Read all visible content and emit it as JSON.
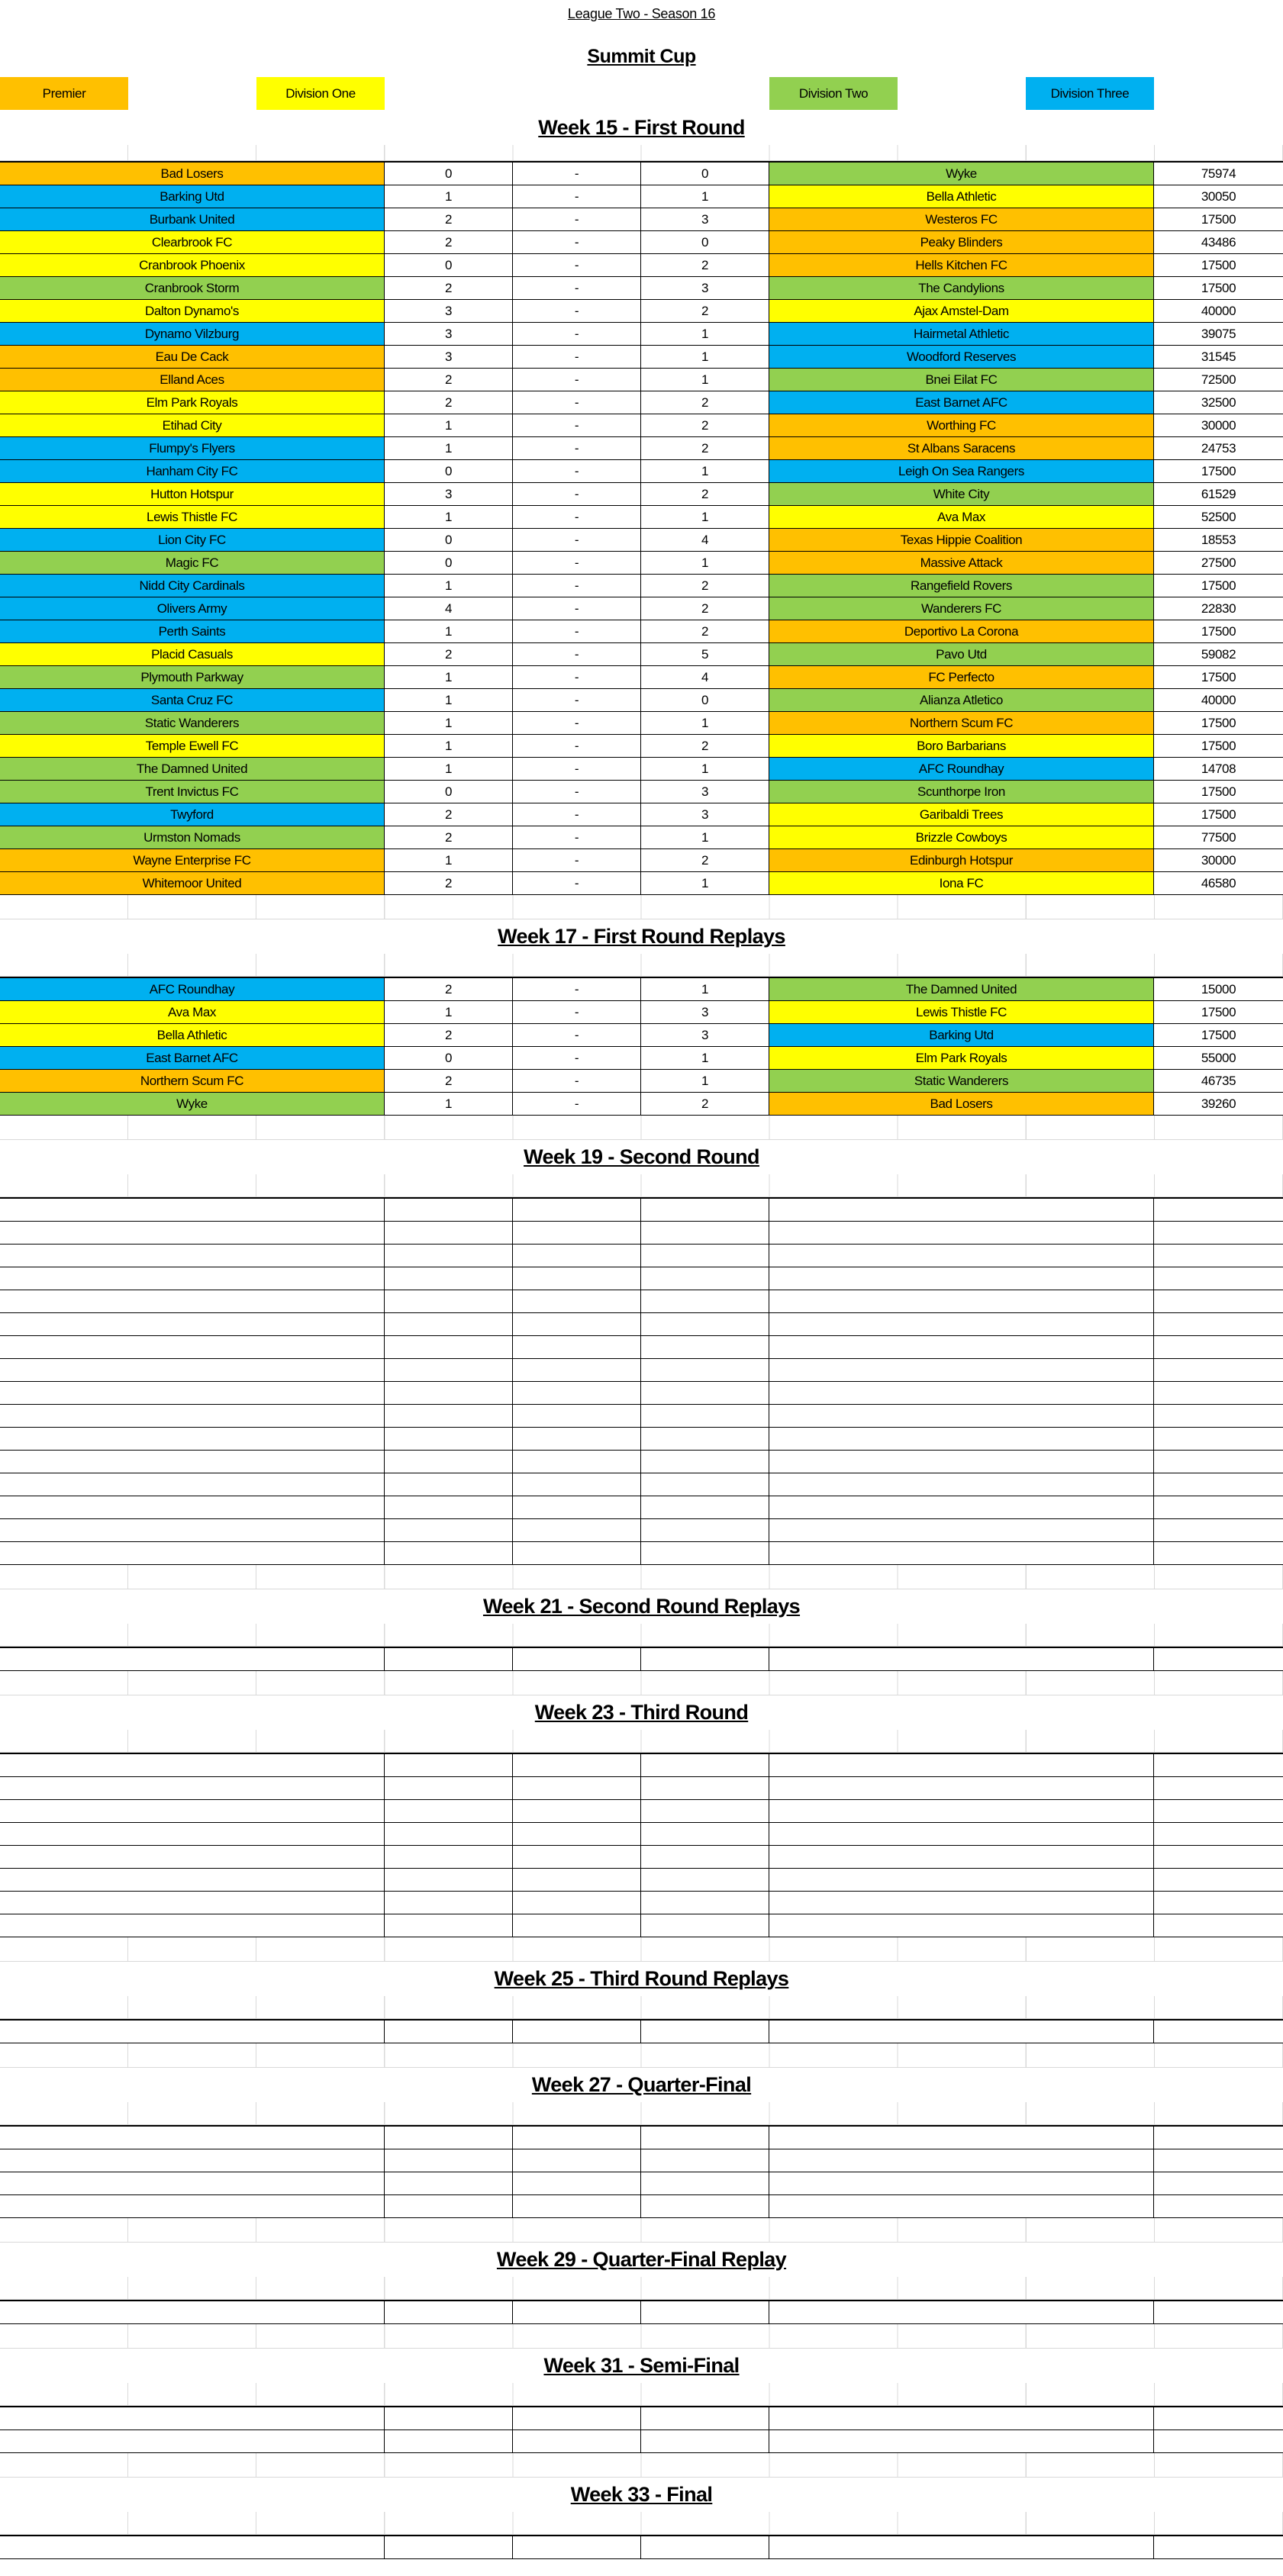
{
  "sheet_title": "League Two - Season 16",
  "competition": "Summit Cup",
  "score_separator": "-",
  "divisions": [
    {
      "name": "Premier",
      "color": "#FFC000"
    },
    {
      "name": "Division One",
      "color": "#FFFF00"
    },
    {
      "name": "Division Two",
      "color": "#92D050"
    },
    {
      "name": "Division Three",
      "color": "#00B0F0"
    }
  ],
  "rounds": [
    {
      "heading": "Week 15 - First Round",
      "fixtures": [
        [
          "Bad Losers",
          "Premier",
          0,
          0,
          "Wyke",
          "Division Two",
          75974
        ],
        [
          "Barking Utd",
          "Division Three",
          1,
          1,
          "Bella Athletic",
          "Division One",
          30050
        ],
        [
          "Burbank United",
          "Division Three",
          2,
          3,
          "Westeros FC",
          "Premier",
          17500
        ],
        [
          "Clearbrook FC",
          "Division One",
          2,
          0,
          "Peaky Blinders",
          "Premier",
          43486
        ],
        [
          "Cranbrook Phoenix",
          "Division One",
          0,
          2,
          "Hells Kitchen FC",
          "Premier",
          17500
        ],
        [
          "Cranbrook Storm",
          "Division Two",
          2,
          3,
          "The Candylions",
          "Division Two",
          17500
        ],
        [
          "Dalton Dynamo's",
          "Division One",
          3,
          2,
          "Ajax Amstel-Dam",
          "Division One",
          40000
        ],
        [
          "Dynamo Vilzburg",
          "Division Three",
          3,
          1,
          "Hairmetal Athletic",
          "Division Three",
          39075
        ],
        [
          "Eau De Cack",
          "Premier",
          3,
          1,
          "Woodford Reserves",
          "Division Three",
          31545
        ],
        [
          "Elland Aces",
          "Premier",
          2,
          1,
          "Bnei Eilat FC",
          "Division Two",
          72500
        ],
        [
          "Elm Park Royals",
          "Division One",
          2,
          2,
          "East Barnet AFC",
          "Division Three",
          32500
        ],
        [
          "Etihad City",
          "Division One",
          1,
          2,
          "Worthing FC",
          "Premier",
          30000
        ],
        [
          "Flumpy's Flyers",
          "Division Three",
          1,
          2,
          "St Albans Saracens",
          "Premier",
          24753
        ],
        [
          "Hanham City FC",
          "Division Three",
          0,
          1,
          "Leigh On Sea Rangers",
          "Division Three",
          17500
        ],
        [
          "Hutton Hotspur",
          "Division One",
          3,
          2,
          "White City",
          "Division Two",
          61529
        ],
        [
          "Lewis Thistle FC",
          "Division One",
          1,
          1,
          "Ava Max",
          "Division One",
          52500
        ],
        [
          "Lion City FC",
          "Division Three",
          0,
          4,
          "Texas Hippie Coalition",
          "Premier",
          18553
        ],
        [
          "Magic FC",
          "Division Two",
          0,
          1,
          "Massive Attack",
          "Premier",
          27500
        ],
        [
          "Nidd City Cardinals",
          "Division Three",
          1,
          2,
          "Rangefield Rovers",
          "Division Two",
          17500
        ],
        [
          "Olivers Army",
          "Division Three",
          4,
          2,
          "Wanderers FC",
          "Division Two",
          22830
        ],
        [
          "Perth Saints",
          "Division Three",
          1,
          2,
          "Deportivo La Corona",
          "Premier",
          17500
        ],
        [
          "Placid Casuals",
          "Division One",
          2,
          5,
          "Pavo Utd",
          "Division Two",
          59082
        ],
        [
          "Plymouth Parkway",
          "Division Two",
          1,
          4,
          "FC Perfecto",
          "Premier",
          17500
        ],
        [
          "Santa Cruz FC",
          "Division Three",
          1,
          0,
          "Alianza Atletico",
          "Division Two",
          40000
        ],
        [
          "Static Wanderers",
          "Division Two",
          1,
          1,
          "Northern Scum FC",
          "Premier",
          17500
        ],
        [
          "Temple Ewell FC",
          "Division One",
          1,
          2,
          "Boro Barbarians",
          "Division One",
          17500
        ],
        [
          "The Damned United",
          "Division Two",
          1,
          1,
          "AFC Roundhay",
          "Division Three",
          14708
        ],
        [
          "Trent Invictus FC",
          "Division Two",
          0,
          3,
          "Scunthorpe Iron",
          "Division Two",
          17500
        ],
        [
          "Twyford",
          "Division Three",
          2,
          3,
          "Garibaldi Trees",
          "Division One",
          17500
        ],
        [
          "Urmston Nomads",
          "Division Two",
          2,
          1,
          "Brizzle Cowboys",
          "Division One",
          77500
        ],
        [
          "Wayne Enterprise FC",
          "Premier",
          1,
          2,
          "Edinburgh Hotspur",
          "Premier",
          30000
        ],
        [
          "Whitemoor United",
          "Premier",
          2,
          1,
          "Iona FC",
          "Division One",
          46580
        ]
      ]
    },
    {
      "heading": "Week 17 - First Round Replays",
      "fixtures": [
        [
          "AFC Roundhay",
          "Division Three",
          2,
          1,
          "The Damned United",
          "Division Two",
          15000
        ],
        [
          "Ava Max",
          "Division One",
          1,
          3,
          "Lewis Thistle FC",
          "Division One",
          17500
        ],
        [
          "Bella Athletic",
          "Division One",
          2,
          3,
          "Barking Utd",
          "Division Three",
          17500
        ],
        [
          "East Barnet AFC",
          "Division Three",
          0,
          1,
          "Elm Park Royals",
          "Division One",
          55000
        ],
        [
          "Northern Scum FC",
          "Premier",
          2,
          1,
          "Static Wanderers",
          "Division Two",
          46735
        ],
        [
          "Wyke",
          "Division Two",
          1,
          2,
          "Bad Losers",
          "Premier",
          39260
        ]
      ]
    },
    {
      "heading": "Week 19 - Second Round",
      "fixtures": []
    },
    {
      "heading": "Week 21 - Second Round Replays",
      "fixtures": []
    },
    {
      "heading": "Week 23 - Third Round",
      "fixtures": []
    },
    {
      "heading": "Week 25 - Third Round Replays",
      "fixtures": []
    },
    {
      "heading": "Week 27 - Quarter-Final",
      "fixtures": []
    },
    {
      "heading": "Week 29 - Quarter-Final Replay",
      "fixtures": []
    },
    {
      "heading": "Week 31 - Semi-Final",
      "fixtures": []
    },
    {
      "heading": "Week 33 - Final",
      "fixtures": []
    }
  ]
}
